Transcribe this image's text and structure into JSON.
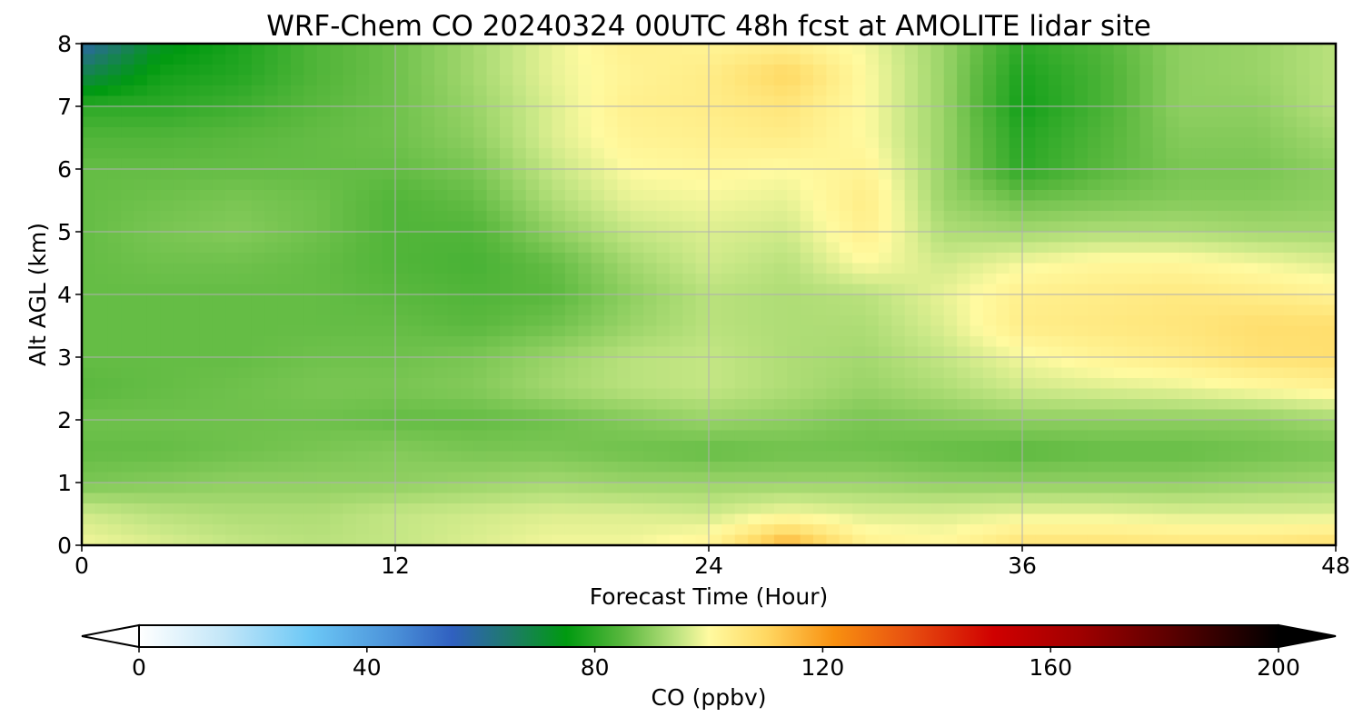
{
  "chart_data": {
    "type": "heatmap",
    "title": "WRF-Chem CO  20240324 00UTC 48h fcst at AMOLITE lidar site",
    "xlabel": "Forecast Time (Hour)",
    "ylabel": "Alt AGL (km)",
    "xlim": [
      0,
      48
    ],
    "ylim": [
      0,
      8
    ],
    "x_ticks": [
      0,
      12,
      24,
      36,
      48
    ],
    "y_ticks": [
      0,
      1,
      2,
      3,
      4,
      5,
      6,
      7,
      8
    ],
    "grid": true,
    "colorbar": {
      "label": "CO  (ppbv)",
      "range": [
        0,
        200
      ],
      "ticks": [
        0,
        40,
        80,
        120,
        160,
        200
      ],
      "extend": "both",
      "orientation": "horizontal",
      "placement": "bottom"
    },
    "x": [
      0,
      3,
      6,
      9,
      12,
      15,
      18,
      21,
      24,
      27,
      30,
      33,
      36,
      39,
      42,
      45,
      48
    ],
    "y": [
      0,
      0.5,
      1,
      1.5,
      2,
      2.5,
      3,
      3.5,
      4,
      4.5,
      5,
      5.5,
      6,
      6.5,
      7,
      7.5,
      8
    ],
    "z": [
      [
        99,
        97,
        95,
        94,
        95,
        97,
        99,
        99,
        102,
        117,
        103,
        101,
        107,
        107,
        106,
        106,
        108
      ],
      [
        96,
        94,
        93,
        93,
        95,
        96,
        97,
        97,
        96,
        99,
        97,
        97,
        98,
        98,
        97,
        97,
        97
      ],
      [
        88,
        89,
        90,
        90,
        90,
        91,
        92,
        91,
        91,
        91,
        91,
        90,
        90,
        90,
        90,
        91,
        92
      ],
      [
        86,
        86,
        87,
        88,
        89,
        88,
        88,
        87,
        86,
        87,
        87,
        86,
        85,
        86,
        86,
        87,
        88
      ],
      [
        87,
        87,
        87,
        87,
        86,
        86,
        87,
        89,
        91,
        90,
        88,
        89,
        90,
        90,
        90,
        90,
        92
      ],
      [
        85,
        86,
        87,
        88,
        88,
        89,
        92,
        94,
        95,
        93,
        91,
        93,
        96,
        97,
        98,
        100,
        102
      ],
      [
        86,
        86,
        86,
        87,
        87,
        88,
        91,
        94,
        95,
        93,
        92,
        95,
        99,
        102,
        104,
        107,
        108
      ],
      [
        86,
        86,
        86,
        86,
        86,
        85,
        87,
        91,
        94,
        93,
        93,
        97,
        104,
        105,
        106,
        108,
        108
      ],
      [
        86,
        86,
        86,
        86,
        85,
        84,
        85,
        90,
        94,
        93,
        94,
        98,
        103,
        104,
        105,
        104,
        102
      ],
      [
        86,
        87,
        87,
        86,
        84,
        83,
        86,
        92,
        96,
        94,
        100,
        96,
        99,
        101,
        101,
        99,
        97
      ],
      [
        86,
        88,
        89,
        87,
        84,
        84,
        90,
        95,
        97,
        96,
        103,
        93,
        92,
        93,
        93,
        92,
        92
      ],
      [
        86,
        87,
        88,
        87,
        84,
        86,
        93,
        98,
        99,
        98,
        104,
        91,
        87,
        88,
        89,
        89,
        90
      ],
      [
        86,
        86,
        86,
        86,
        86,
        88,
        95,
        100,
        101,
        100,
        102,
        91,
        80,
        85,
        88,
        88,
        90
      ],
      [
        84,
        84,
        85,
        86,
        87,
        90,
        97,
        102,
        103,
        104,
        100,
        91,
        79,
        84,
        89,
        89,
        92
      ],
      [
        80,
        80,
        82,
        85,
        87,
        91,
        97,
        103,
        104,
        106,
        100,
        91,
        77,
        83,
        90,
        90,
        94
      ],
      [
        68,
        77,
        79,
        84,
        87,
        92,
        98,
        102,
        104,
        110,
        100,
        91,
        78,
        83,
        90,
        91,
        94
      ],
      [
        58,
        73,
        78,
        84,
        87,
        92,
        98,
        103,
        102,
        103,
        99,
        91,
        80,
        84,
        90,
        91,
        94
      ]
    ]
  }
}
